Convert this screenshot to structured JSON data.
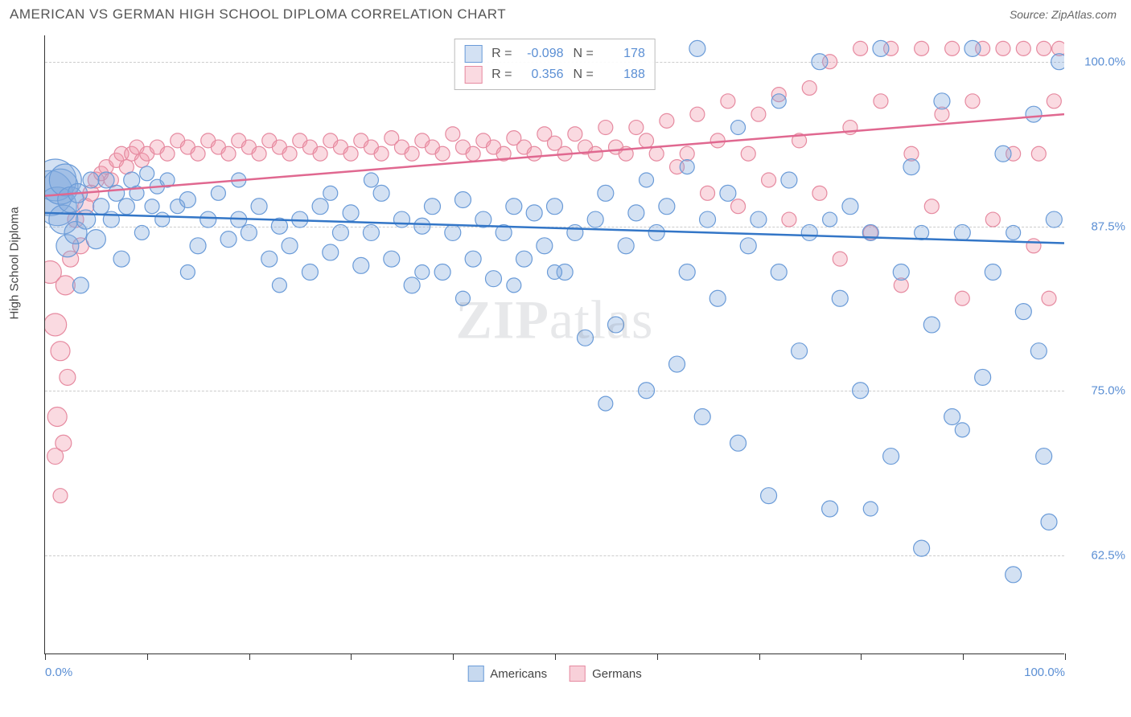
{
  "title": "AMERICAN VS GERMAN HIGH SCHOOL DIPLOMA CORRELATION CHART",
  "source": "Source: ZipAtlas.com",
  "yaxis_label": "High School Diploma",
  "watermark_bold": "ZIP",
  "watermark_rest": "atlas",
  "chart": {
    "type": "scatter",
    "xlim": [
      0,
      100
    ],
    "ylim": [
      55,
      102
    ],
    "yticks": [
      62.5,
      75.0,
      87.5,
      100.0
    ],
    "ytick_labels": [
      "62.5%",
      "75.0%",
      "87.5%",
      "100.0%"
    ],
    "xticks": [
      0,
      10,
      20,
      30,
      40,
      50,
      60,
      70,
      80,
      90,
      100
    ],
    "xtick_labels_left": "0.0%",
    "xtick_labels_right": "100.0%",
    "background_color": "#ffffff",
    "grid_color": "#cccccc",
    "axis_color": "#333333",
    "label_color": "#5b8fd4"
  },
  "series": [
    {
      "name": "Americans",
      "fill": "rgba(130,170,220,0.35)",
      "stroke": "#6a9bd8",
      "line_stroke": "#3376c7",
      "line_width": 2.5,
      "trend": {
        "x1": 0,
        "y1": 88.5,
        "x2": 100,
        "y2": 86.2
      },
      "stats": {
        "R": "-0.098",
        "N": "178"
      }
    },
    {
      "name": "Germans",
      "fill": "rgba(240,150,170,0.35)",
      "stroke": "#e68aa0",
      "line_stroke": "#e06890",
      "line_width": 2.5,
      "trend": {
        "x1": 0,
        "y1": 89.8,
        "x2": 100,
        "y2": 96.0
      },
      "stats": {
        "R": "0.356",
        "N": "188"
      }
    }
  ],
  "legend": {
    "items": [
      {
        "label": "Americans",
        "fill": "rgba(130,170,220,0.45)",
        "stroke": "#6a9bd8"
      },
      {
        "label": "Germans",
        "fill": "rgba(240,150,170,0.45)",
        "stroke": "#e68aa0"
      }
    ]
  },
  "points": {
    "americans": [
      [
        0.5,
        90,
        28
      ],
      [
        1,
        91,
        26
      ],
      [
        1.2,
        89,
        24
      ],
      [
        1.5,
        90.5,
        22
      ],
      [
        1.8,
        88,
        18
      ],
      [
        2,
        91,
        20
      ],
      [
        2.2,
        86,
        14
      ],
      [
        2.5,
        89.5,
        16
      ],
      [
        3,
        87,
        14
      ],
      [
        3.2,
        90,
        12
      ],
      [
        3.5,
        83,
        10
      ],
      [
        4,
        88,
        12
      ],
      [
        4.5,
        91,
        10
      ],
      [
        5,
        86.5,
        12
      ],
      [
        5.5,
        89,
        10
      ],
      [
        6,
        91,
        10
      ],
      [
        6.5,
        88,
        10
      ],
      [
        7,
        90,
        10
      ],
      [
        7.5,
        85,
        10
      ],
      [
        8,
        89,
        10
      ],
      [
        8.5,
        91,
        10
      ],
      [
        9,
        90,
        9
      ],
      [
        9.5,
        87,
        9
      ],
      [
        10,
        91.5,
        9
      ],
      [
        10.5,
        89,
        9
      ],
      [
        11,
        90.5,
        9
      ],
      [
        11.5,
        88,
        9
      ],
      [
        12,
        91,
        9
      ],
      [
        13,
        89,
        9
      ],
      [
        14,
        89.5,
        10
      ],
      [
        15,
        86,
        10
      ],
      [
        16,
        88,
        10
      ],
      [
        17,
        90,
        9
      ],
      [
        18,
        86.5,
        10
      ],
      [
        19,
        88,
        10
      ],
      [
        20,
        87,
        10
      ],
      [
        21,
        89,
        10
      ],
      [
        22,
        85,
        10
      ],
      [
        23,
        87.5,
        10
      ],
      [
        24,
        86,
        10
      ],
      [
        25,
        88,
        10
      ],
      [
        26,
        84,
        10
      ],
      [
        27,
        89,
        10
      ],
      [
        28,
        85.5,
        10
      ],
      [
        29,
        87,
        10
      ],
      [
        30,
        88.5,
        10
      ],
      [
        31,
        84.5,
        10
      ],
      [
        32,
        87,
        10
      ],
      [
        33,
        90,
        10
      ],
      [
        34,
        85,
        10
      ],
      [
        35,
        88,
        10
      ],
      [
        36,
        83,
        10
      ],
      [
        37,
        87.5,
        10
      ],
      [
        38,
        89,
        10
      ],
      [
        39,
        84,
        10
      ],
      [
        40,
        87,
        10
      ],
      [
        41,
        89.5,
        10
      ],
      [
        42,
        85,
        10
      ],
      [
        43,
        88,
        10
      ],
      [
        44,
        83.5,
        10
      ],
      [
        45,
        87,
        10
      ],
      [
        46,
        89,
        10
      ],
      [
        47,
        85,
        10
      ],
      [
        48,
        88.5,
        10
      ],
      [
        49,
        86,
        10
      ],
      [
        50,
        89,
        10
      ],
      [
        51,
        84,
        10
      ],
      [
        52,
        87,
        10
      ],
      [
        53,
        79,
        10
      ],
      [
        54,
        88,
        10
      ],
      [
        55,
        90,
        10
      ],
      [
        56,
        80,
        10
      ],
      [
        57,
        86,
        10
      ],
      [
        58,
        88.5,
        10
      ],
      [
        59,
        75,
        10
      ],
      [
        60,
        87,
        10
      ],
      [
        61,
        89,
        10
      ],
      [
        62,
        77,
        10
      ],
      [
        63,
        84,
        10
      ],
      [
        64,
        101,
        10
      ],
      [
        64.5,
        73,
        10
      ],
      [
        65,
        88,
        10
      ],
      [
        66,
        82,
        10
      ],
      [
        67,
        90,
        10
      ],
      [
        68,
        71,
        10
      ],
      [
        69,
        86,
        10
      ],
      [
        70,
        88,
        10
      ],
      [
        71,
        67,
        10
      ],
      [
        72,
        84,
        10
      ],
      [
        73,
        91,
        10
      ],
      [
        74,
        78,
        10
      ],
      [
        75,
        87,
        10
      ],
      [
        76,
        100,
        10
      ],
      [
        77,
        66,
        10
      ],
      [
        78,
        82,
        10
      ],
      [
        79,
        89,
        10
      ],
      [
        80,
        75,
        10
      ],
      [
        81,
        87,
        10
      ],
      [
        82,
        101,
        10
      ],
      [
        83,
        70,
        10
      ],
      [
        84,
        84,
        10
      ],
      [
        85,
        92,
        10
      ],
      [
        86,
        63,
        10
      ],
      [
        87,
        80,
        10
      ],
      [
        88,
        97,
        10
      ],
      [
        89,
        73,
        10
      ],
      [
        90,
        87,
        10
      ],
      [
        91,
        101,
        10
      ],
      [
        92,
        76,
        10
      ],
      [
        93,
        84,
        10
      ],
      [
        94,
        93,
        10
      ],
      [
        95,
        61,
        10
      ],
      [
        96,
        81,
        10
      ],
      [
        97,
        96,
        10
      ],
      [
        98,
        70,
        10
      ],
      [
        99,
        88,
        10
      ],
      [
        99.5,
        100,
        10
      ],
      [
        98.5,
        65,
        10
      ],
      [
        97.5,
        78,
        10
      ],
      [
        19,
        91,
        9
      ],
      [
        28,
        90,
        9
      ],
      [
        37,
        84,
        9
      ],
      [
        46,
        83,
        9
      ],
      [
        55,
        74,
        9
      ],
      [
        63,
        92,
        9
      ],
      [
        72,
        97,
        9
      ],
      [
        81,
        66,
        9
      ],
      [
        90,
        72,
        9
      ],
      [
        14,
        84,
        9
      ],
      [
        23,
        83,
        9
      ],
      [
        32,
        91,
        9
      ],
      [
        41,
        82,
        9
      ],
      [
        50,
        84,
        9
      ],
      [
        59,
        91,
        9
      ],
      [
        68,
        95,
        9
      ],
      [
        77,
        88,
        9
      ],
      [
        86,
        87,
        9
      ],
      [
        95,
        87,
        9
      ]
    ],
    "germans": [
      [
        0.5,
        84,
        14
      ],
      [
        1,
        80,
        14
      ],
      [
        1.2,
        73,
        12
      ],
      [
        1.5,
        78,
        12
      ],
      [
        1.8,
        71,
        10
      ],
      [
        2,
        83,
        12
      ],
      [
        2.2,
        76,
        10
      ],
      [
        2.5,
        85,
        10
      ],
      [
        3,
        88,
        10
      ],
      [
        3.5,
        86,
        10
      ],
      [
        4,
        89,
        10
      ],
      [
        4.5,
        90,
        10
      ],
      [
        5,
        91,
        10
      ],
      [
        5.5,
        91.5,
        9
      ],
      [
        6,
        92,
        9
      ],
      [
        6.5,
        91,
        9
      ],
      [
        7,
        92.5,
        9
      ],
      [
        7.5,
        93,
        9
      ],
      [
        8,
        92,
        9
      ],
      [
        8.5,
        93,
        9
      ],
      [
        9,
        93.5,
        9
      ],
      [
        9.5,
        92.5,
        9
      ],
      [
        10,
        93,
        9
      ],
      [
        11,
        93.5,
        9
      ],
      [
        12,
        93,
        9
      ],
      [
        13,
        94,
        9
      ],
      [
        14,
        93.5,
        9
      ],
      [
        15,
        93,
        9
      ],
      [
        16,
        94,
        9
      ],
      [
        17,
        93.5,
        9
      ],
      [
        18,
        93,
        9
      ],
      [
        19,
        94,
        9
      ],
      [
        20,
        93.5,
        9
      ],
      [
        21,
        93,
        9
      ],
      [
        22,
        94,
        9
      ],
      [
        23,
        93.5,
        9
      ],
      [
        24,
        93,
        9
      ],
      [
        25,
        94,
        9
      ],
      [
        26,
        93.5,
        9
      ],
      [
        27,
        93,
        9
      ],
      [
        28,
        94,
        9
      ],
      [
        29,
        93.5,
        9
      ],
      [
        30,
        93,
        9
      ],
      [
        31,
        94,
        9
      ],
      [
        32,
        93.5,
        9
      ],
      [
        33,
        93,
        9
      ],
      [
        34,
        94.2,
        9
      ],
      [
        35,
        93.5,
        9
      ],
      [
        36,
        93,
        9
      ],
      [
        37,
        94,
        9
      ],
      [
        38,
        93.5,
        9
      ],
      [
        39,
        93,
        9
      ],
      [
        40,
        94.5,
        9
      ],
      [
        41,
        93.5,
        9
      ],
      [
        42,
        93,
        9
      ],
      [
        43,
        94,
        9
      ],
      [
        44,
        93.5,
        9
      ],
      [
        45,
        93,
        9
      ],
      [
        46,
        94.2,
        9
      ],
      [
        47,
        93.5,
        9
      ],
      [
        48,
        93,
        9
      ],
      [
        49,
        94.5,
        9
      ],
      [
        50,
        93.8,
        9
      ],
      [
        51,
        93,
        9
      ],
      [
        52,
        94.5,
        9
      ],
      [
        53,
        93.5,
        9
      ],
      [
        54,
        93,
        9
      ],
      [
        55,
        95,
        9
      ],
      [
        56,
        93.5,
        9
      ],
      [
        57,
        93,
        9
      ],
      [
        58,
        95,
        9
      ],
      [
        59,
        94,
        9
      ],
      [
        60,
        93,
        9
      ],
      [
        61,
        95.5,
        9
      ],
      [
        62,
        92,
        9
      ],
      [
        63,
        93,
        9
      ],
      [
        64,
        96,
        9
      ],
      [
        65,
        90,
        9
      ],
      [
        66,
        94,
        9
      ],
      [
        67,
        97,
        9
      ],
      [
        68,
        89,
        9
      ],
      [
        69,
        93,
        9
      ],
      [
        70,
        96,
        9
      ],
      [
        71,
        91,
        9
      ],
      [
        72,
        97.5,
        9
      ],
      [
        73,
        88,
        9
      ],
      [
        74,
        94,
        9
      ],
      [
        75,
        98,
        9
      ],
      [
        76,
        90,
        9
      ],
      [
        77,
        100,
        9
      ],
      [
        78,
        85,
        9
      ],
      [
        79,
        95,
        9
      ],
      [
        80,
        101,
        9
      ],
      [
        81,
        87,
        9
      ],
      [
        82,
        97,
        9
      ],
      [
        83,
        101,
        9
      ],
      [
        84,
        83,
        9
      ],
      [
        85,
        93,
        9
      ],
      [
        86,
        101,
        9
      ],
      [
        87,
        89,
        9
      ],
      [
        88,
        96,
        9
      ],
      [
        89,
        101,
        9
      ],
      [
        90,
        82,
        9
      ],
      [
        91,
        97,
        9
      ],
      [
        92,
        101,
        9
      ],
      [
        93,
        88,
        9
      ],
      [
        94,
        101,
        9
      ],
      [
        95,
        93,
        9
      ],
      [
        96,
        101,
        9
      ],
      [
        97,
        86,
        9
      ],
      [
        98,
        101,
        9
      ],
      [
        99,
        97,
        9
      ],
      [
        99.5,
        101,
        9
      ],
      [
        98.5,
        82,
        9
      ],
      [
        97.5,
        93,
        9
      ],
      [
        1,
        70,
        10
      ],
      [
        1.5,
        67,
        9
      ]
    ]
  }
}
